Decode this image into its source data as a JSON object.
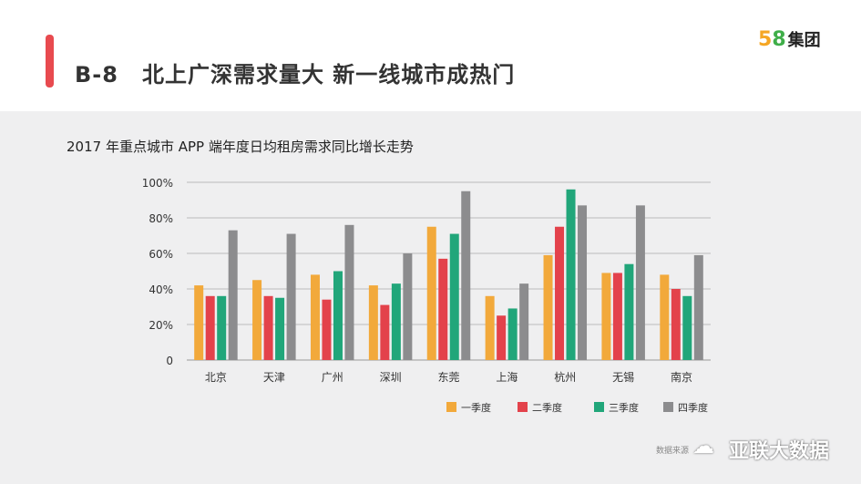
{
  "header": {
    "code": "B-8",
    "title": "北上广深需求量大 新一线城市成热门",
    "logo_num5": "5",
    "logo_num8": "8",
    "logo_text": "集团"
  },
  "footer": {
    "source": "数据来源",
    "watermark": "亚联大数据"
  },
  "colors": {
    "q1": "#f2a93b",
    "q2": "#e3424b",
    "q3": "#21a67a",
    "q4": "#8c8c8e"
  },
  "chart_data": {
    "type": "bar",
    "title": "2017 年重点城市 APP 端年度日均租房需求同比增长走势",
    "categories": [
      "北京",
      "天津",
      "广州",
      "深圳",
      "东莞",
      "上海",
      "杭州",
      "无锡",
      "南京"
    ],
    "series": [
      {
        "name": "一季度",
        "values": [
          42,
          45,
          48,
          42,
          75,
          36,
          59,
          49,
          48
        ]
      },
      {
        "name": "二季度",
        "values": [
          36,
          36,
          34,
          31,
          57,
          25,
          75,
          49,
          40
        ]
      },
      {
        "name": "三季度",
        "values": [
          36,
          35,
          50,
          43,
          71,
          29,
          96,
          54,
          36
        ]
      },
      {
        "name": "四季度",
        "values": [
          73,
          71,
          76,
          60,
          95,
          43,
          87,
          87,
          59
        ]
      }
    ],
    "yticks": [
      "0",
      "20%",
      "40%",
      "60%",
      "80%",
      "100%"
    ],
    "ylim": [
      0,
      100
    ],
    "xlabel": "",
    "ylabel": "",
    "grid": true,
    "legend": "bottom-right"
  }
}
